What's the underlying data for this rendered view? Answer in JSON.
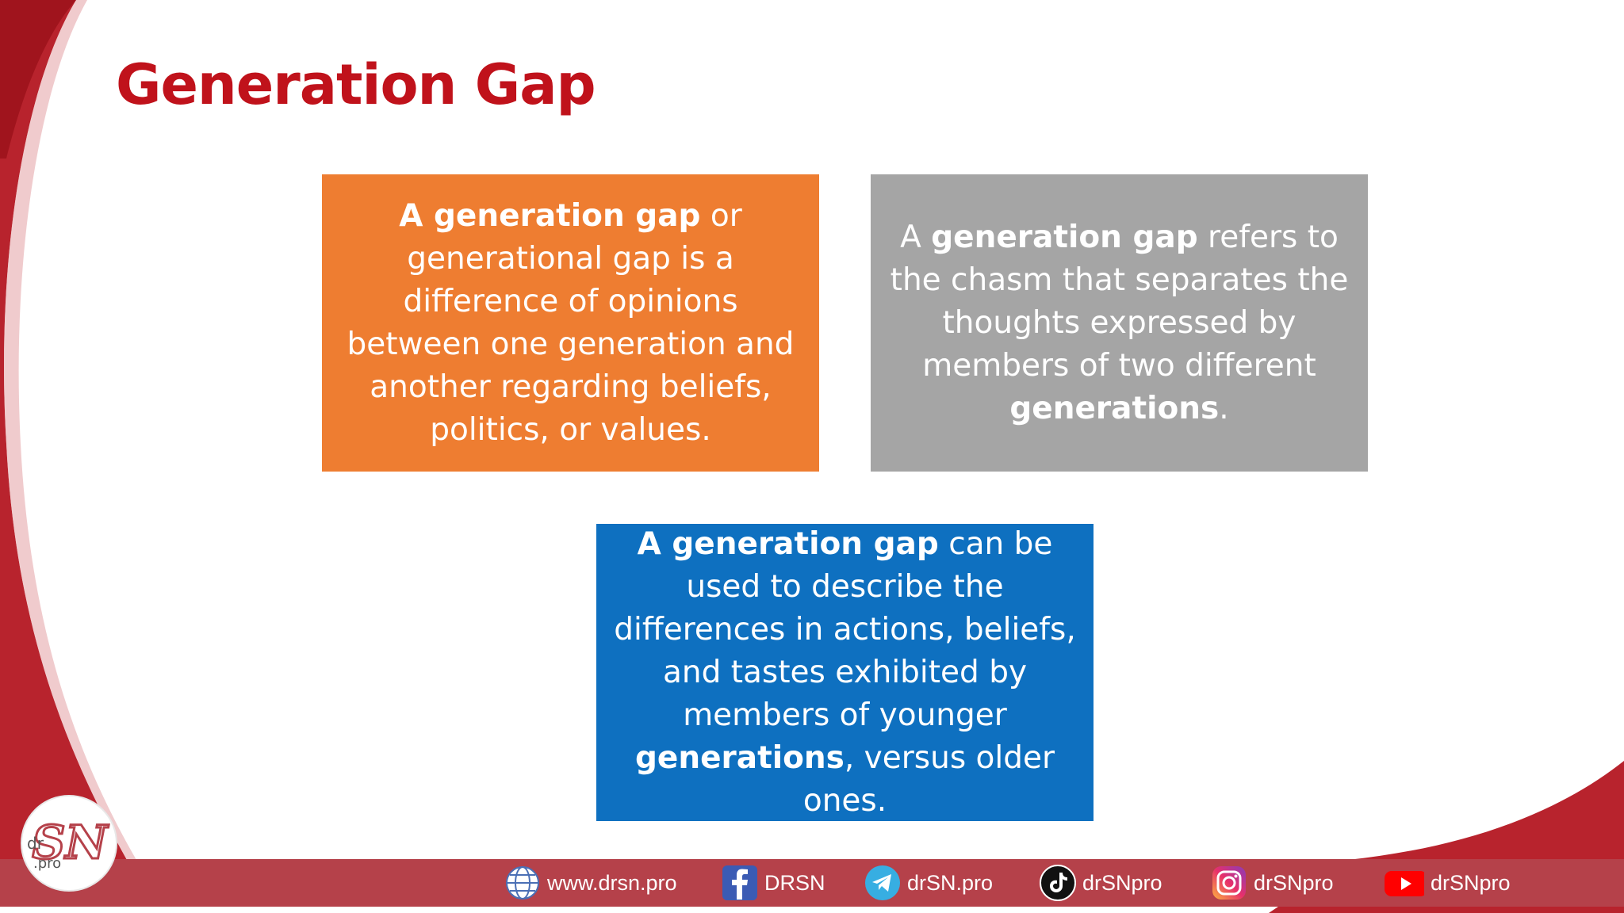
{
  "slide": {
    "title": "Generation Gap"
  },
  "boxes": [
    {
      "color": "#ee7d31",
      "parts": [
        {
          "text": "A generation gap",
          "bold": true
        },
        {
          "text": " or generational gap is a difference of opinions between one generation and another regarding beliefs, politics, or values.",
          "bold": false
        }
      ]
    },
    {
      "color": "#a5a5a5",
      "parts": [
        {
          "text": "A ",
          "bold": false
        },
        {
          "text": "generation gap",
          "bold": true
        },
        {
          "text": " refers to the chasm that separates the thoughts expressed by members of two different ",
          "bold": false
        },
        {
          "text": "generations",
          "bold": true
        },
        {
          "text": ".",
          "bold": false
        }
      ]
    },
    {
      "color": "#0e70c0",
      "parts": [
        {
          "text": "A generation gap",
          "bold": true
        },
        {
          "text": " can be used to describe the differences in actions, beliefs, and tastes exhibited by members of younger ",
          "bold": false
        },
        {
          "text": "generations",
          "bold": true
        },
        {
          "text": ", versus older ones.",
          "bold": false
        }
      ]
    }
  ],
  "logo": {
    "text_main": "SN",
    "text_dr": "dr",
    "text_pro": ".pro"
  },
  "footer": {
    "links": [
      {
        "icon": "globe-icon",
        "label": "www.drsn.pro"
      },
      {
        "icon": "facebook-icon",
        "label": "DRSN"
      },
      {
        "icon": "telegram-icon",
        "label": "drSN.pro"
      },
      {
        "icon": "tiktok-icon",
        "label": "drSNpro"
      },
      {
        "icon": "instagram-icon",
        "label": "drSNpro"
      },
      {
        "icon": "youtube-icon",
        "label": "drSNpro"
      }
    ]
  },
  "colors": {
    "brand_red": "#c0121b",
    "footer_red": "#b5414a",
    "orange": "#ee7d31",
    "gray": "#a5a5a5",
    "blue": "#0e70c0"
  }
}
